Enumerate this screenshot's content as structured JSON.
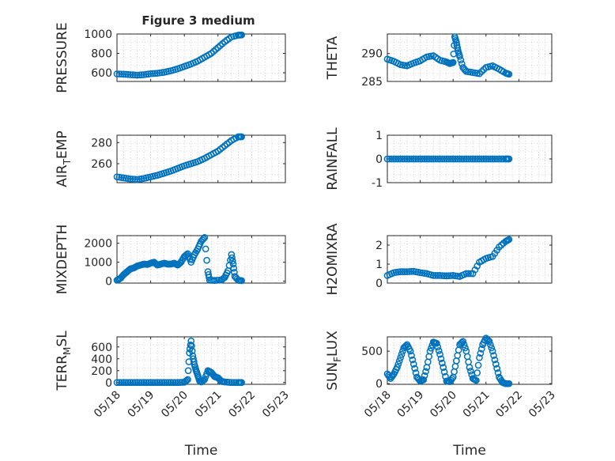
{
  "figure": {
    "title": "Figure 3 medium",
    "colors": {
      "marker": "#0072BD",
      "axis": "#262626",
      "grid": "#b0b0b0",
      "background": "#ffffff"
    }
  },
  "chart_data": [
    {
      "type": "scatter",
      "id": "pressure",
      "ylabel": "PRESSURE",
      "ylim": [
        510,
        1000
      ],
      "yticks": [
        600,
        800,
        1000
      ],
      "xlim": [
        0,
        5
      ],
      "xticks": [],
      "grid": true,
      "series": [
        {
          "points": [
            [
              0.0,
              588
            ],
            [
              0.2,
              585
            ],
            [
              0.4,
              580
            ],
            [
              0.6,
              575
            ],
            [
              0.8,
              580
            ],
            [
              1.0,
              590
            ],
            [
              1.2,
              595
            ],
            [
              1.4,
              605
            ],
            [
              1.6,
              620
            ],
            [
              1.8,
              640
            ],
            [
              2.0,
              665
            ],
            [
              2.2,
              690
            ],
            [
              2.4,
              720
            ],
            [
              2.6,
              760
            ],
            [
              2.8,
              800
            ],
            [
              3.0,
              860
            ],
            [
              3.2,
              920
            ],
            [
              3.4,
              970
            ],
            [
              3.6,
              988
            ],
            [
              3.7,
              990
            ]
          ]
        }
      ]
    },
    {
      "type": "scatter",
      "id": "theta",
      "ylabel": "THETA",
      "ylim": [
        285,
        293.5
      ],
      "yticks": [
        285,
        290
      ],
      "xlim": [
        0,
        5
      ],
      "xticks": [],
      "grid": true,
      "series": [
        {
          "points": [
            [
              0.0,
              289
            ],
            [
              0.2,
              288.6
            ],
            [
              0.4,
              288
            ],
            [
              0.6,
              287.8
            ],
            [
              0.8,
              288.3
            ],
            [
              1.0,
              288.7
            ],
            [
              1.2,
              289.4
            ],
            [
              1.4,
              289.6
            ],
            [
              1.6,
              288.8
            ],
            [
              1.8,
              288.5
            ],
            [
              1.9,
              288.2
            ],
            [
              2.0,
              288.4
            ],
            [
              2.05,
              293
            ],
            [
              2.1,
              292
            ],
            [
              2.15,
              290.5
            ],
            [
              2.2,
              289.5
            ],
            [
              2.3,
              287.5
            ],
            [
              2.4,
              286.8
            ],
            [
              2.6,
              286.6
            ],
            [
              2.8,
              286.4
            ],
            [
              3.0,
              287.5
            ],
            [
              3.2,
              287.8
            ],
            [
              3.4,
              287.2
            ],
            [
              3.6,
              286.5
            ],
            [
              3.7,
              286.3
            ]
          ]
        }
      ]
    },
    {
      "type": "scatter",
      "id": "air_temp",
      "ylabel": "AIR_TEMP",
      "ylabel_main": "AIR",
      "ylabel_sub": "T",
      "ylabel_rest": "EMP",
      "ylim": [
        242,
        287
      ],
      "yticks": [
        260,
        280
      ],
      "xlim": [
        0,
        5
      ],
      "xticks": [],
      "grid": true,
      "series": [
        {
          "points": [
            [
              0.0,
              247.5
            ],
            [
              0.2,
              246.5
            ],
            [
              0.4,
              245.5
            ],
            [
              0.6,
              245
            ],
            [
              0.8,
              246
            ],
            [
              1.0,
              247.5
            ],
            [
              1.2,
              249
            ],
            [
              1.4,
              251
            ],
            [
              1.6,
              253
            ],
            [
              1.8,
              255.5
            ],
            [
              2.0,
              258
            ],
            [
              2.2,
              260
            ],
            [
              2.4,
              262
            ],
            [
              2.6,
              265
            ],
            [
              2.8,
              268.5
            ],
            [
              3.0,
              272
            ],
            [
              3.2,
              277
            ],
            [
              3.4,
              282
            ],
            [
              3.6,
              285.5
            ],
            [
              3.7,
              285.5
            ]
          ]
        }
      ]
    },
    {
      "type": "scatter",
      "id": "rainfall",
      "ylabel": "RAINFALL",
      "ylim": [
        -1,
        1
      ],
      "yticks": [
        -1,
        0,
        1
      ],
      "xlim": [
        0,
        5
      ],
      "xticks": [],
      "grid": true,
      "series": [
        {
          "points": [
            [
              0.0,
              0
            ],
            [
              0.2,
              0
            ],
            [
              0.4,
              0
            ],
            [
              0.6,
              0
            ],
            [
              0.8,
              0
            ],
            [
              1.0,
              0
            ],
            [
              1.2,
              0
            ],
            [
              1.4,
              0
            ],
            [
              1.6,
              0
            ],
            [
              1.8,
              0
            ],
            [
              2.0,
              0
            ],
            [
              2.2,
              0
            ],
            [
              2.4,
              0
            ],
            [
              2.6,
              0
            ],
            [
              2.8,
              0
            ],
            [
              3.0,
              0
            ],
            [
              3.2,
              0
            ],
            [
              3.4,
              0
            ],
            [
              3.6,
              0
            ],
            [
              3.7,
              0
            ]
          ]
        }
      ]
    },
    {
      "type": "scatter",
      "id": "mixdepth",
      "ylabel": "MIXDEPTH",
      "ylim": [
        -100,
        2400
      ],
      "yticks": [
        0,
        1000,
        2000
      ],
      "xlim": [
        0,
        5
      ],
      "xticks": [],
      "grid": true,
      "series": [
        {
          "points": [
            [
              0.0,
              50
            ],
            [
              0.1,
              150
            ],
            [
              0.2,
              350
            ],
            [
              0.3,
              500
            ],
            [
              0.4,
              650
            ],
            [
              0.5,
              700
            ],
            [
              0.6,
              800
            ],
            [
              0.7,
              850
            ],
            [
              0.8,
              900
            ],
            [
              0.9,
              880
            ],
            [
              1.0,
              950
            ],
            [
              1.1,
              1000
            ],
            [
              1.2,
              850
            ],
            [
              1.3,
              900
            ],
            [
              1.4,
              950
            ],
            [
              1.5,
              900
            ],
            [
              1.6,
              900
            ],
            [
              1.7,
              950
            ],
            [
              1.8,
              850
            ],
            [
              1.9,
              1000
            ],
            [
              2.0,
              1300
            ],
            [
              2.1,
              1450
            ],
            [
              2.2,
              1000
            ],
            [
              2.3,
              1400
            ],
            [
              2.4,
              1700
            ],
            [
              2.5,
              2100
            ],
            [
              2.6,
              2300
            ],
            [
              2.7,
              500
            ],
            [
              2.75,
              50
            ],
            [
              2.9,
              40
            ],
            [
              3.1,
              60
            ],
            [
              3.2,
              200
            ],
            [
              3.3,
              550
            ],
            [
              3.4,
              1400
            ],
            [
              3.45,
              900
            ],
            [
              3.5,
              250
            ],
            [
              3.6,
              50
            ],
            [
              3.7,
              30
            ]
          ]
        }
      ]
    },
    {
      "type": "scatter",
      "id": "h2omixra",
      "ylabel": "H2OMIXRA",
      "ylim": [
        0,
        2.5
      ],
      "yticks": [
        0,
        1,
        2
      ],
      "xlim": [
        0,
        5
      ],
      "xticks": [],
      "grid": true,
      "series": [
        {
          "points": [
            [
              0.0,
              0.4
            ],
            [
              0.2,
              0.55
            ],
            [
              0.4,
              0.6
            ],
            [
              0.6,
              0.6
            ],
            [
              0.8,
              0.62
            ],
            [
              1.0,
              0.55
            ],
            [
              1.2,
              0.5
            ],
            [
              1.4,
              0.4
            ],
            [
              1.6,
              0.4
            ],
            [
              1.8,
              0.38
            ],
            [
              2.0,
              0.4
            ],
            [
              2.2,
              0.35
            ],
            [
              2.4,
              0.5
            ],
            [
              2.6,
              0.5
            ],
            [
              2.8,
              1.1
            ],
            [
              3.0,
              1.3
            ],
            [
              3.2,
              1.4
            ],
            [
              3.4,
              1.9
            ],
            [
              3.6,
              2.2
            ],
            [
              3.7,
              2.3
            ]
          ]
        }
      ]
    },
    {
      "type": "scatter",
      "id": "terr_msl",
      "ylabel": "TERR_MSL",
      "ylabel_main": "TERR",
      "ylabel_sub": "M",
      "ylabel_rest": "SL",
      "ylim": [
        -30,
        770
      ],
      "yticks": [
        0,
        200,
        400,
        600
      ],
      "xlim": [
        0,
        5
      ],
      "xticks": [
        "05/18",
        "05/19",
        "05/20",
        "05/21",
        "05/22",
        "05/23"
      ],
      "xlabel": "Time",
      "grid": true,
      "series": [
        {
          "points": [
            [
              0.0,
              0
            ],
            [
              0.2,
              0
            ],
            [
              0.4,
              0
            ],
            [
              0.6,
              0
            ],
            [
              0.8,
              0
            ],
            [
              1.0,
              0
            ],
            [
              1.2,
              0
            ],
            [
              1.4,
              0
            ],
            [
              1.6,
              0
            ],
            [
              1.8,
              0
            ],
            [
              2.0,
              5
            ],
            [
              2.1,
              50
            ],
            [
              2.15,
              500
            ],
            [
              2.2,
              700
            ],
            [
              2.25,
              450
            ],
            [
              2.3,
              300
            ],
            [
              2.35,
              200
            ],
            [
              2.4,
              120
            ],
            [
              2.45,
              30
            ],
            [
              2.5,
              10
            ],
            [
              2.6,
              50
            ],
            [
              2.7,
              200
            ],
            [
              2.8,
              170
            ],
            [
              2.9,
              100
            ],
            [
              3.0,
              80
            ],
            [
              3.1,
              20
            ],
            [
              3.2,
              10
            ],
            [
              3.4,
              0
            ],
            [
              3.6,
              0
            ],
            [
              3.7,
              0
            ]
          ]
        }
      ]
    },
    {
      "type": "scatter",
      "id": "sun_flux",
      "ylabel": "SUN_FLUX",
      "ylabel_main": "SUN",
      "ylabel_sub": "F",
      "ylabel_rest": "LUX",
      "ylim": [
        -10,
        720
      ],
      "yticks": [
        0,
        500
      ],
      "xlim": [
        0,
        5
      ],
      "xticks": [
        "05/18",
        "05/19",
        "05/20",
        "05/21",
        "05/22",
        "05/23"
      ],
      "xlabel": "Time",
      "grid": true,
      "series": [
        {
          "points": [
            [
              0.0,
              150
            ],
            [
              0.1,
              80
            ],
            [
              0.2,
              150
            ],
            [
              0.3,
              250
            ],
            [
              0.4,
              400
            ],
            [
              0.5,
              550
            ],
            [
              0.6,
              600
            ],
            [
              0.7,
              500
            ],
            [
              0.8,
              300
            ],
            [
              0.9,
              100
            ],
            [
              1.0,
              40
            ],
            [
              1.1,
              60
            ],
            [
              1.2,
              250
            ],
            [
              1.3,
              500
            ],
            [
              1.4,
              640
            ],
            [
              1.5,
              620
            ],
            [
              1.6,
              450
            ],
            [
              1.7,
              250
            ],
            [
              1.8,
              40
            ],
            [
              1.9,
              30
            ],
            [
              2.0,
              100
            ],
            [
              2.1,
              350
            ],
            [
              2.2,
              600
            ],
            [
              2.3,
              650
            ],
            [
              2.4,
              500
            ],
            [
              2.5,
              250
            ],
            [
              2.6,
              80
            ],
            [
              2.7,
              50
            ],
            [
              2.8,
              400
            ],
            [
              2.9,
              600
            ],
            [
              3.0,
              700
            ],
            [
              3.1,
              650
            ],
            [
              3.2,
              500
            ],
            [
              3.3,
              300
            ],
            [
              3.4,
              100
            ],
            [
              3.5,
              20
            ],
            [
              3.6,
              0
            ],
            [
              3.7,
              0
            ]
          ]
        }
      ]
    }
  ]
}
